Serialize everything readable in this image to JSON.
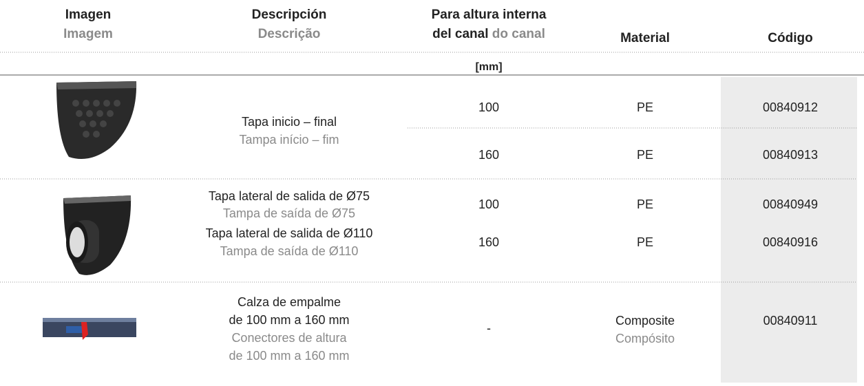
{
  "header": {
    "columns": [
      {
        "es": "Imagen",
        "pt": "Imagem"
      },
      {
        "es": "Descripción",
        "pt": "Descrição"
      },
      {
        "line1": "Para altura interna",
        "es": "del canal",
        "pt": "do canal"
      },
      {
        "es": "Material"
      },
      {
        "es": "Código"
      }
    ],
    "unit": "[mm]"
  },
  "groups": [
    {
      "description": {
        "es": "Tapa inicio – final",
        "pt": "Tampa início – fim"
      },
      "items": [
        {
          "height": 100,
          "material": "PE",
          "code": "00840912"
        },
        {
          "height": 160,
          "material": "PE",
          "code": "00840913"
        }
      ]
    },
    {
      "items": [
        {
          "description": {
            "es": "Tapa lateral de salida de Ø75",
            "pt": "Tampa de saída de Ø75"
          },
          "height": 100,
          "material": "PE",
          "code": "00840949"
        },
        {
          "description": {
            "es": "Tapa lateral de salida de Ø110",
            "pt": "Tampa de saída de Ø110"
          },
          "height": 160,
          "material": "PE",
          "code": "00840916"
        }
      ]
    },
    {
      "description": {
        "es": [
          "Calza de empalme",
          "de 100 mm a 160 mm"
        ],
        "pt": [
          "Conectores de altura",
          "de 100 mm a 160 mm"
        ]
      },
      "height": "-",
      "material": {
        "es": "Composite",
        "pt": "Compósito"
      },
      "code": "00840911"
    }
  ]
}
